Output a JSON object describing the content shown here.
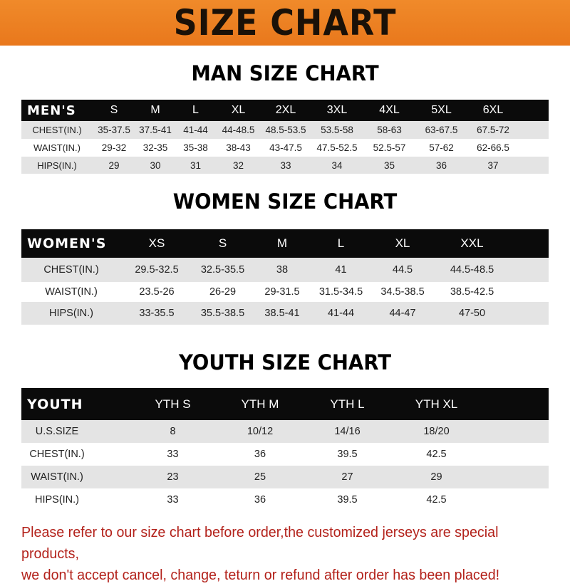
{
  "title": "SIZE CHART",
  "colors": {
    "banner": "#ee8424",
    "header_row": "#0b0b0b",
    "stripe": "#e4e4e4",
    "notice": "#b3221b"
  },
  "men": {
    "title": "MAN SIZE CHART",
    "header": [
      "MEN'S",
      "S",
      "M",
      "L",
      "XL",
      "2XL",
      "3XL",
      "4XL",
      "5XL",
      "6XL"
    ],
    "rows": [
      [
        "CHEST(IN.)",
        "35-37.5",
        "37.5-41",
        "41-44",
        "44-48.5",
        "48.5-53.5",
        "53.5-58",
        "58-63",
        "63-67.5",
        "67.5-72"
      ],
      [
        "WAIST(IN.)",
        "29-32",
        "32-35",
        "35-38",
        "38-43",
        "43-47.5",
        "47.5-52.5",
        "52.5-57",
        "57-62",
        "62-66.5"
      ],
      [
        "HIPS(IN.)",
        "29",
        "30",
        "31",
        "32",
        "33",
        "34",
        "35",
        "36",
        "37"
      ]
    ]
  },
  "women": {
    "title": "WOMEN SIZE CHART",
    "header": [
      "WOMEN'S",
      "XS",
      "S",
      "M",
      "L",
      "XL",
      "XXL"
    ],
    "rows": [
      [
        "CHEST(IN.)",
        "29.5-32.5",
        "32.5-35.5",
        "38",
        "41",
        "44.5",
        "44.5-48.5"
      ],
      [
        "WAIST(IN.)",
        "23.5-26",
        "26-29",
        "29-31.5",
        "31.5-34.5",
        "34.5-38.5",
        "38.5-42.5"
      ],
      [
        "HIPS(IN.)",
        "33-35.5",
        "35.5-38.5",
        "38.5-41",
        "41-44",
        "44-47",
        "47-50"
      ]
    ]
  },
  "youth": {
    "title": "YOUTH SIZE CHART",
    "header": [
      "YOUTH",
      "YTH S",
      "YTH M",
      "YTH L",
      "YTH XL"
    ],
    "rows": [
      [
        "U.S.SIZE",
        "8",
        "10/12",
        "14/16",
        "18/20"
      ],
      [
        "CHEST(IN.)",
        "33",
        "36",
        "39.5",
        "42.5"
      ],
      [
        "WAIST(IN.)",
        "23",
        "25",
        "27",
        "29"
      ],
      [
        "HIPS(IN.)",
        "33",
        "36",
        "39.5",
        "42.5"
      ]
    ]
  },
  "notice": {
    "line1": "Please refer to our size chart before order,the customized jerseys are special products,",
    "line2": "we don't accept cancel, change, teturn or refund after order has been placed!"
  }
}
